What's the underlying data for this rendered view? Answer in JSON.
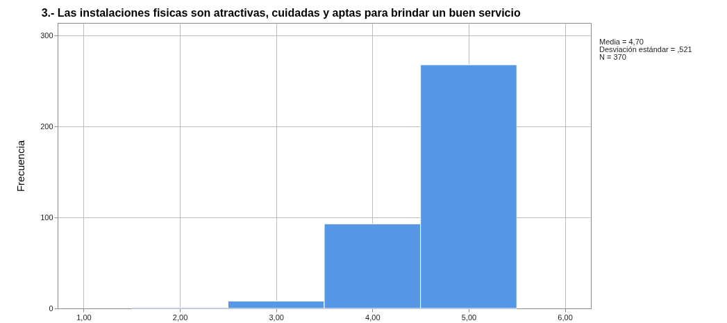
{
  "chart_data": {
    "type": "histogram",
    "title": "3.- Las instalaciones fisicas son atractivas, cuidadas y aptas para brindar un buen servicio",
    "ylabel": "Frecuencia",
    "bins": [
      1.5,
      2.5,
      3.5,
      4.5,
      5.5
    ],
    "values": [
      1,
      8,
      93,
      268
    ],
    "color": "#5697e6",
    "xlim": [
      0.73,
      6.27
    ],
    "xticks": [
      {
        "value": 1,
        "label": "1,00"
      },
      {
        "value": 2,
        "label": "2,00"
      },
      {
        "value": 3,
        "label": "3,00"
      },
      {
        "value": 4,
        "label": "4,00"
      },
      {
        "value": 5,
        "label": "5,00"
      },
      {
        "value": 6,
        "label": "6,00"
      }
    ],
    "ylim": [
      0,
      314
    ],
    "yticks": [
      0,
      100,
      200,
      300
    ],
    "grid": true,
    "annotations": [
      "Media = 4,70",
      "Desviación estándar = ,521",
      "N = 370"
    ]
  }
}
